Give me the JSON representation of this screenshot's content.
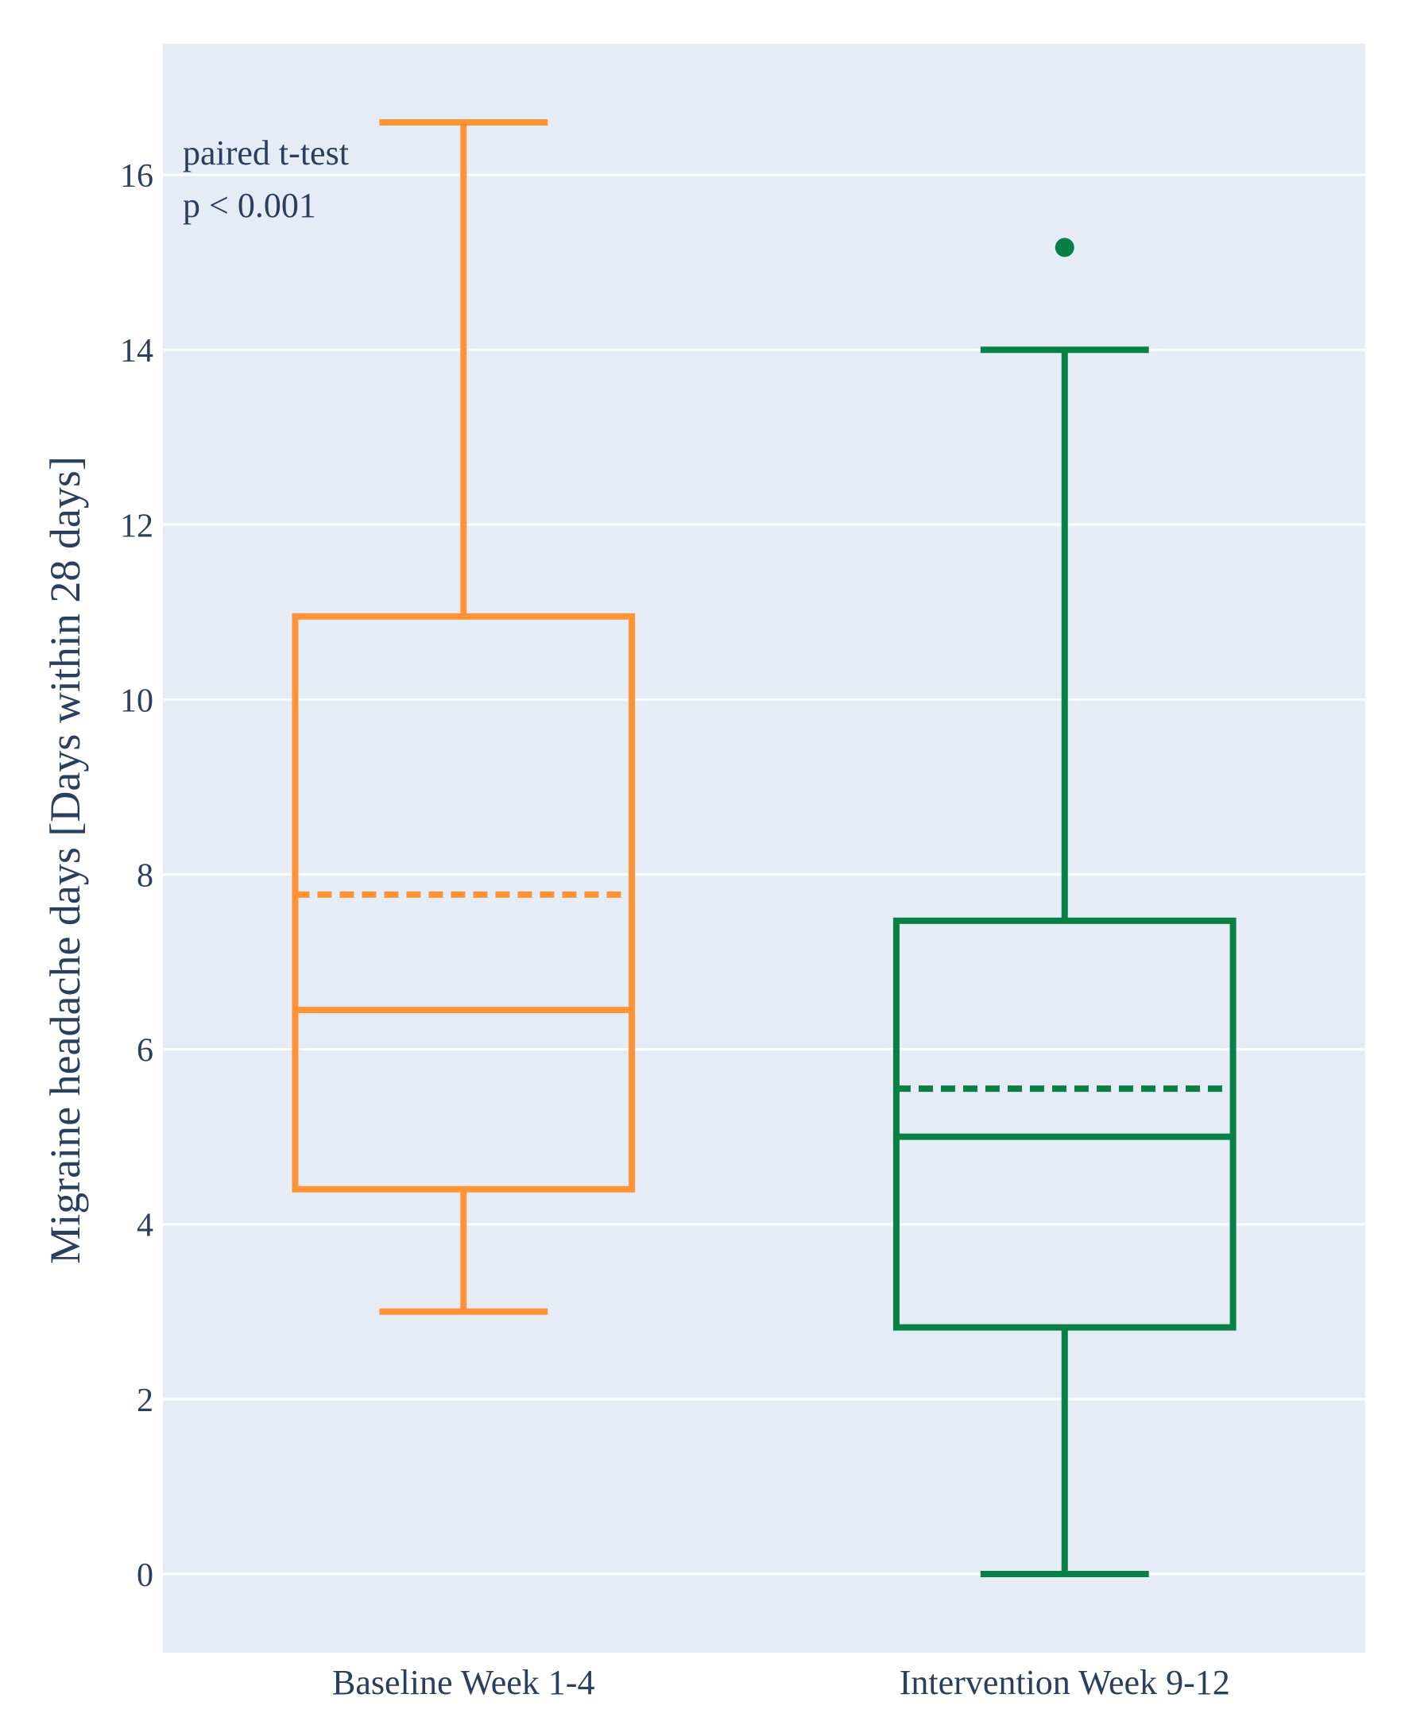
{
  "chart_data": {
    "type": "box",
    "title": "",
    "xlabel": "",
    "ylabel": "Migraine headache days [Days within 28 days]",
    "ylim": [
      -0.9,
      17.5
    ],
    "yticks": [
      0,
      2,
      4,
      6,
      8,
      10,
      12,
      14,
      16
    ],
    "grid": true,
    "colors": {
      "plot_bg": "#e5ecf6",
      "grid": "#ffffff",
      "text": "#2a3f5f"
    },
    "annotation": [
      "paired t-test",
      "p < 0.001"
    ],
    "series": [
      {
        "name": "Baseline Week 1-4",
        "color": "#ff9335",
        "lower_whisker": 3.0,
        "q1": 4.4,
        "median": 6.45,
        "mean": 7.77,
        "q3": 10.95,
        "upper_whisker": 16.6,
        "outliers": []
      },
      {
        "name": "Intervention Week 9-12",
        "color": "#077f45",
        "lower_whisker": 0.0,
        "q1": 2.82,
        "median": 5.0,
        "mean": 5.55,
        "q3": 7.47,
        "upper_whisker": 14.0,
        "outliers": [
          15.17
        ]
      }
    ]
  }
}
